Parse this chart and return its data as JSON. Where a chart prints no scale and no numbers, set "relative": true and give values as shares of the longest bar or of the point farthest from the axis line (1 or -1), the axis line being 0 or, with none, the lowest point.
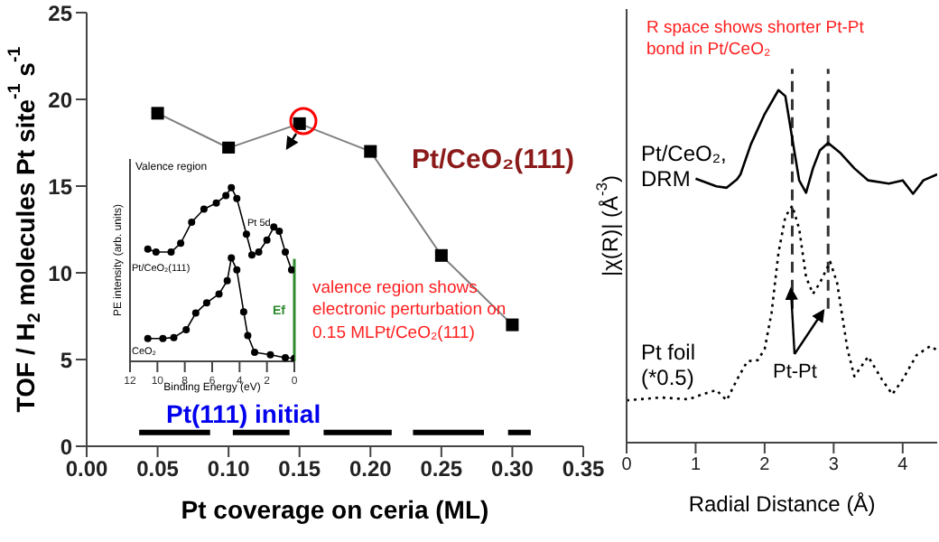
{
  "chart_data": [
    {
      "type": "line",
      "xlabel": "Pt coverage on ceria (ML)",
      "ylabel": "TOF / H$_{2}$ molecules Pt site$^{-1}$ s$^{-1}$",
      "xlim": [
        0,
        0.35
      ],
      "xticks": [
        {
          "value": 0,
          "label": "0.00"
        },
        0.05,
        {
          "value": 0.1,
          "label": "0.10"
        },
        0.15,
        {
          "value": 0.2,
          "label": "0.20"
        },
        0.25,
        {
          "value": 0.3,
          "label": "0.30"
        },
        0.35
      ],
      "ylim": [
        0,
        25
      ],
      "yticks": [
        0,
        5,
        10,
        15,
        20,
        25
      ],
      "marker": "square",
      "annotations": [
        "valence region shows electronic perturbation on 0.15 MLPt/CeO₂(111)"
      ],
      "series": [
        {
          "name": "Pt/CeO₂(111)",
          "color": "#000000",
          "x": [
            0.05,
            0.1,
            0.15,
            0.2,
            0.25,
            0.3
          ],
          "values": [
            19.2,
            17.2,
            18.6,
            17.0,
            11.0,
            7.0
          ]
        },
        {
          "name": "Pt(111) initial",
          "color": "#000000",
          "marker": "none",
          "x": [
            0.037,
            0.087,
            0.095,
            0.103,
            0.143,
            0.155,
            0.167,
            0.215,
            0.222,
            0.23,
            0.28,
            0.288,
            0.297,
            0.313
          ],
          "values": [
            0.8,
            0.8,
            null,
            0.8,
            0.8,
            null,
            0.8,
            0.8,
            null,
            0.8,
            0.8,
            null,
            0.8,
            0.8
          ]
        }
      ]
    },
    {
      "type": "line",
      "relative": true,
      "xlabel": "Binding Energy (eV)",
      "ylabel": "PE intensity (arb. units)",
      "xlim": [
        12,
        0
      ],
      "xticks": [
        12,
        10,
        8,
        6,
        4,
        2,
        0
      ],
      "marker": "circle",
      "annotations": [
        "Valence region",
        "Pt 5d"
      ],
      "ref_lines": [
        {
          "axis": "x",
          "value": 0,
          "label": "Ef",
          "color": "#2e8b2e"
        }
      ],
      "series": [
        {
          "name": "Pt/CeO₂(111)",
          "color": "#000000",
          "x": [
            10.7,
            10.1,
            9.0,
            8.3,
            7.5,
            6.6,
            5.7,
            5.0,
            4.6,
            4.2,
            3.5,
            3.1,
            2.6,
            2.0,
            1.5,
            1.1,
            0.66,
            0.2
          ],
          "values": [
            0.646,
            0.629,
            0.629,
            0.68,
            0.801,
            0.876,
            0.911,
            0.955,
            1.0,
            0.938,
            0.732,
            0.612,
            0.629,
            0.698,
            0.773,
            0.749,
            0.629,
            0.526
          ]
        },
        {
          "name": "CeO₂",
          "color": "#000000",
          "x": [
            10.7,
            9.6,
            8.8,
            7.9,
            7.2,
            6.4,
            5.5,
            4.9,
            4.6,
            4.2,
            3.7,
            3.4,
            2.9,
            1.75,
            0.66,
            0
          ],
          "values": [
            0.131,
            0.131,
            0.137,
            0.182,
            0.278,
            0.337,
            0.388,
            0.464,
            0.595,
            0.526,
            0.285,
            0.148,
            0.052,
            0.038,
            0.021,
            0.017
          ]
        }
      ]
    },
    {
      "type": "line",
      "relative": true,
      "xlabel": "Radial Distance (Å)",
      "ylabel": "|χ(R)| (Å$^{-3}$)",
      "xlim": [
        0,
        4.5
      ],
      "xticks": [
        0,
        1,
        2,
        3,
        4
      ],
      "annotations": [
        "R space shows shorter Pt-Pt bond in Pt/CeO₂",
        "Pt-Pt"
      ],
      "ref_lines": [
        {
          "axis": "x",
          "value": 2.4,
          "line_style": "dashed"
        },
        {
          "axis": "x",
          "value": 2.92,
          "line_style": "dashed"
        }
      ],
      "series": [
        {
          "name": "Pt/CeO₂, DRM",
          "color": "#000000",
          "line_style": "solid",
          "x": [
            1.0,
            1.3,
            1.45,
            1.6,
            1.65,
            1.8,
            2.0,
            2.2,
            2.3,
            2.4,
            2.5,
            2.6,
            2.7,
            2.8,
            2.92,
            3.1,
            3.3,
            3.5,
            3.8,
            4.0,
            4.15,
            4.3,
            4.5
          ],
          "values": [
            0.749,
            0.727,
            0.723,
            0.747,
            0.761,
            0.846,
            0.932,
            1.0,
            0.983,
            0.863,
            0.744,
            0.709,
            0.778,
            0.829,
            0.85,
            0.821,
            0.778,
            0.744,
            0.735,
            0.744,
            0.706,
            0.744,
            0.761
          ]
        },
        {
          "name": "Pt foil (*0.5)",
          "color": "#000000",
          "line_style": "dotted",
          "x": [
            0,
            0.5,
            0.9,
            1.1,
            1.3,
            1.45,
            1.6,
            1.75,
            1.9,
            2.0,
            2.1,
            2.2,
            2.3,
            2.4,
            2.5,
            2.6,
            2.7,
            2.8,
            2.95,
            3.05,
            3.2,
            3.3,
            3.5,
            3.7,
            3.85,
            4.0,
            4.2,
            4.4,
            4.5
          ],
          "values": [
            0.12,
            0.128,
            0.123,
            0.137,
            0.149,
            0.12,
            0.179,
            0.231,
            0.234,
            0.265,
            0.368,
            0.538,
            0.641,
            0.672,
            0.607,
            0.47,
            0.422,
            0.453,
            0.513,
            0.453,
            0.265,
            0.188,
            0.244,
            0.179,
            0.137,
            0.179,
            0.248,
            0.274,
            0.262
          ]
        }
      ]
    }
  ]
}
